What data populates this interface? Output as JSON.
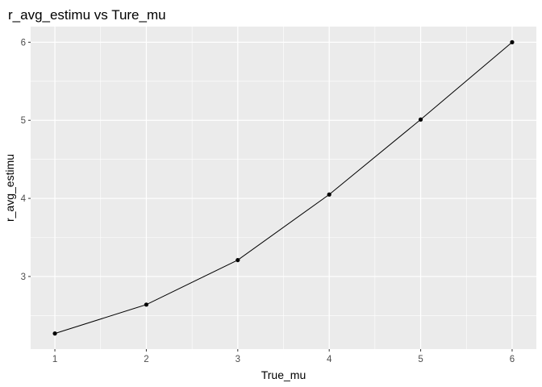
{
  "chart_data": {
    "type": "line",
    "title": "r_avg_estimu vs Ture_mu",
    "xlabel": "True_mu",
    "ylabel": "r_avg_estimu",
    "x": [
      1,
      2,
      3,
      4,
      5,
      6
    ],
    "series": [
      {
        "values": [
          2.27,
          2.64,
          3.21,
          4.05,
          5.01,
          6.0
        ]
      }
    ],
    "xticks": [
      "1",
      "2",
      "3",
      "4",
      "5",
      "6"
    ],
    "yticks": [
      "3",
      "4",
      "5",
      "6"
    ],
    "xlim": [
      0.735,
      6.265
    ],
    "ylim": [
      2.07,
      6.2
    ],
    "grid": true,
    "markers": true,
    "colors": {
      "panel_background": "#ebebeb",
      "grid": "#ffffff",
      "line": "#000000",
      "point": "#000000",
      "tick_text": "#4d4d4d",
      "tick_mark": "#333333"
    }
  }
}
